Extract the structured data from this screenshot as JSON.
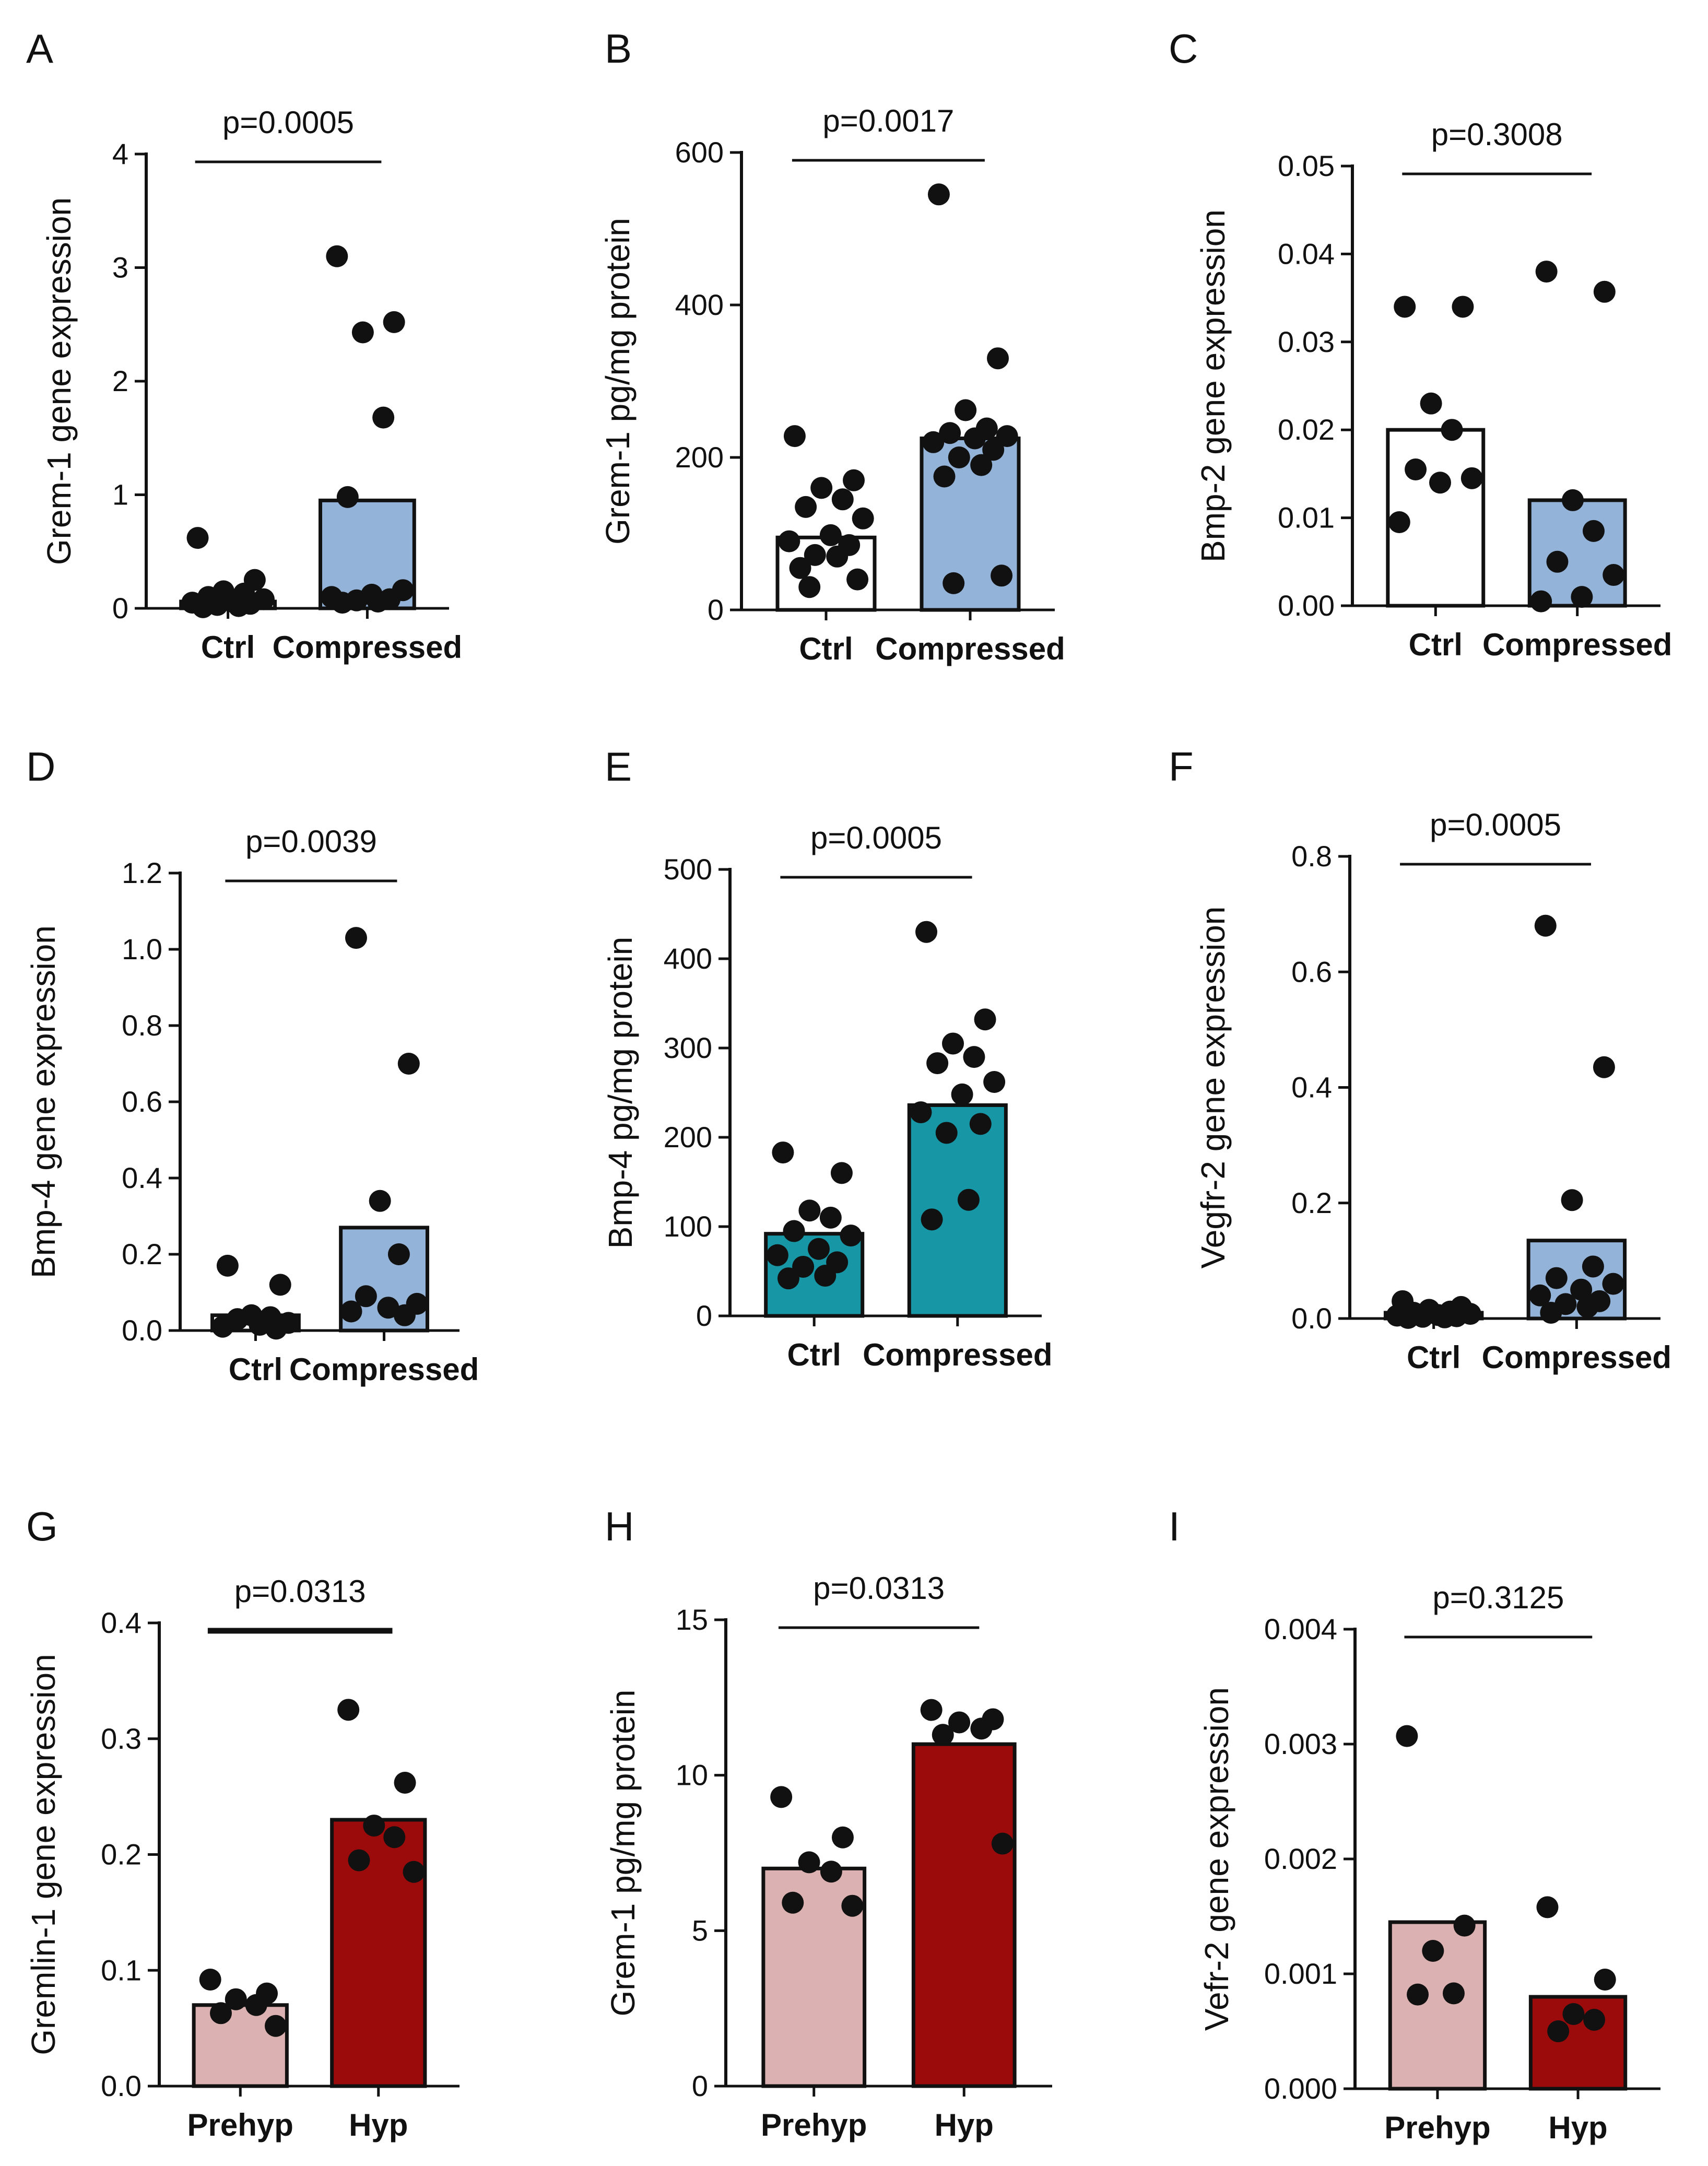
{
  "chart_data": [
    {
      "panel": "A",
      "type": "bar",
      "ylabel": "Grem-1 gene expression",
      "categories": [
        "Ctrl",
        "Compressed"
      ],
      "ylim": [
        0,
        4
      ],
      "ticks": [
        "0",
        "1",
        "2",
        "3",
        "4"
      ],
      "bar_values": [
        0.06,
        0.95
      ],
      "p_value": "p=0.0005",
      "points": [
        [
          0.62,
          0.25,
          0.15,
          0.13,
          0.1,
          0.08,
          0.06,
          0.05,
          0.04,
          0.03,
          0.02,
          0.01
        ],
        [
          3.1,
          2.52,
          2.43,
          1.68,
          0.98,
          0.16,
          0.12,
          0.1,
          0.08,
          0.07,
          0.06,
          0.05
        ]
      ]
    },
    {
      "panel": "B",
      "type": "bar",
      "ylabel": "Grem-1 pg/mg protein",
      "categories": [
        "Ctrl",
        "Compressed"
      ],
      "ylim": [
        0,
        600
      ],
      "ticks": [
        "0",
        "200",
        "400",
        "600"
      ],
      "bar_values": [
        95,
        225
      ],
      "p_value": "p=0.0017",
      "points": [
        [
          228,
          170,
          160,
          145,
          135,
          120,
          98,
          90,
          85,
          72,
          70,
          55,
          40,
          30
        ],
        [
          545,
          330,
          262,
          238,
          232,
          228,
          225,
          220,
          210,
          200,
          190,
          175,
          45,
          35
        ]
      ]
    },
    {
      "panel": "C",
      "type": "bar",
      "ylabel": "Bmp-2 gene expression",
      "categories": [
        "Ctrl",
        "Compressed"
      ],
      "ylim": [
        0,
        0.05
      ],
      "ticks": [
        "0.00",
        "0.01",
        "0.02",
        "0.03",
        "0.04",
        "0.05"
      ],
      "bar_values": [
        0.02,
        0.012
      ],
      "p_value": "p=0.3008",
      "points": [
        [
          0.034,
          0.034,
          0.023,
          0.02,
          0.0155,
          0.0145,
          0.014,
          0.0095
        ],
        [
          0.038,
          0.0357,
          0.012,
          0.0085,
          0.005,
          0.0035,
          0.001,
          0.0005
        ]
      ]
    },
    {
      "panel": "D",
      "type": "bar",
      "ylabel": "Bmp-4 gene expression",
      "categories": [
        "Ctrl",
        "Compressed"
      ],
      "ylim": [
        0,
        1.2
      ],
      "ticks": [
        "0.0",
        "0.2",
        "0.4",
        "0.6",
        "0.8",
        "1.0",
        "1.2"
      ],
      "bar_values": [
        0.04,
        0.27
      ],
      "p_value": "p=0.0039",
      "points": [
        [
          0.17,
          0.12,
          0.04,
          0.035,
          0.03,
          0.02,
          0.015,
          0.01,
          0.005
        ],
        [
          1.03,
          0.7,
          0.34,
          0.2,
          0.09,
          0.07,
          0.06,
          0.05,
          0.04
        ]
      ]
    },
    {
      "panel": "E",
      "type": "bar",
      "ylabel": "Bmp-4 pg/mg protein",
      "categories": [
        "Ctrl",
        "Compressed"
      ],
      "ylim": [
        0,
        500
      ],
      "ticks": [
        "0",
        "100",
        "200",
        "300",
        "400",
        "500"
      ],
      "bar_values": [
        92,
        236
      ],
      "p_value": "p=0.0005",
      "bar_color": "#1797a6",
      "points": [
        [
          183,
          160,
          118,
          110,
          95,
          90,
          75,
          68,
          60,
          55,
          45,
          42
        ],
        [
          430,
          332,
          305,
          290,
          283,
          262,
          248,
          228,
          215,
          205,
          130,
          108
        ]
      ]
    },
    {
      "panel": "F",
      "type": "bar",
      "ylabel": "Vegfr-2 gene expression",
      "categories": [
        "Ctrl",
        "Compressed"
      ],
      "ylim": [
        0,
        0.8
      ],
      "ticks": [
        "0.0",
        "0.2",
        "0.4",
        "0.6",
        "0.8"
      ],
      "bar_values": [
        0.01,
        0.135
      ],
      "p_value": "p=0.0005",
      "points": [
        [
          0.03,
          0.02,
          0.015,
          0.012,
          0.01,
          0.008,
          0.006,
          0.005,
          0.004,
          0.003,
          0.002,
          0.001
        ],
        [
          0.68,
          0.435,
          0.205,
          0.09,
          0.07,
          0.06,
          0.05,
          0.04,
          0.03,
          0.025,
          0.02,
          0.01
        ]
      ]
    },
    {
      "panel": "G",
      "type": "bar",
      "ylabel": "Gremlin-1 gene expression",
      "categories": [
        "Prehyp",
        "Hyp"
      ],
      "ylim": [
        0,
        0.4
      ],
      "ticks": [
        "0.0",
        "0.1",
        "0.2",
        "0.3",
        "0.4"
      ],
      "bar_values": [
        0.07,
        0.23
      ],
      "p_value": "p=0.0313",
      "bar_color": "#dcb1b1",
      "bar_color_2": "#9b0b0b",
      "thick_line": true,
      "points": [
        [
          0.092,
          0.08,
          0.075,
          0.07,
          0.063,
          0.052
        ],
        [
          0.325,
          0.262,
          0.225,
          0.215,
          0.195,
          0.185
        ]
      ]
    },
    {
      "panel": "H",
      "type": "bar",
      "ylabel": "Grem-1 pg/mg protein",
      "categories": [
        "Prehyp",
        "Hyp"
      ],
      "ylim": [
        0,
        15
      ],
      "ticks": [
        "0",
        "5",
        "10",
        "15"
      ],
      "bar_values": [
        7.0,
        11.0
      ],
      "p_value": "p=0.0313",
      "bar_color": "#dcb1b1",
      "bar_color_2": "#9b0b0b",
      "points": [
        [
          9.3,
          8.0,
          7.2,
          6.9,
          5.9,
          5.8
        ],
        [
          12.1,
          11.8,
          11.7,
          11.5,
          11.3,
          7.8
        ]
      ]
    },
    {
      "panel": "I",
      "type": "bar",
      "ylabel": "Vefr-2 gene expression",
      "categories": [
        "Prehyp",
        "Hyp"
      ],
      "ylim": [
        0,
        0.004
      ],
      "ticks": [
        "0.000",
        "0.001",
        "0.002",
        "0.003",
        "0.004"
      ],
      "bar_values": [
        0.00145,
        0.0008
      ],
      "p_value": "p=0.3125",
      "bar_color": "#dcb1b1",
      "bar_color_2": "#9b0b0b",
      "points": [
        [
          0.00307,
          0.00142,
          0.0012,
          0.00083,
          0.00082
        ],
        [
          0.00158,
          0.00095,
          0.00065,
          0.0006,
          0.0005
        ]
      ]
    }
  ],
  "colors": {
    "ctrl_bar": "#ffffff",
    "compressed_bar": "#94b3d8",
    "compressed_bar_E": "#1797a6",
    "prehyp_bar": "#dcb1b1",
    "hyp_bar": "#9b0b0b",
    "points": "#111111"
  }
}
